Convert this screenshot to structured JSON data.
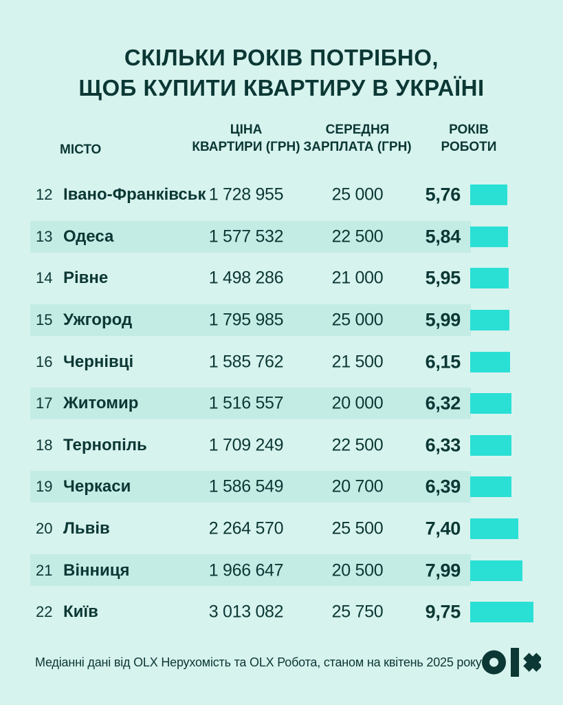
{
  "title": {
    "line1": "СКІЛЬКИ РОКІВ ПОТРІБНО,",
    "line2": "ЩОБ КУПИТИ КВАРТИРУ В УКРАЇНІ"
  },
  "columns": {
    "city": "МІСТО",
    "price_line1": "ЦІНА",
    "price_line2": "КВАРТИРИ (ГРН)",
    "salary_line1": "СЕРЕДНЯ",
    "salary_line2": "ЗАРПЛАТА (ГРН)",
    "years_line1": "РОКІВ",
    "years_line2": "РОБОТИ"
  },
  "table": {
    "rows": [
      {
        "rank": "12",
        "city": "Івано-Франківськ",
        "price": "1 728 955",
        "salary": "25 000",
        "years": "5,76",
        "years_num": 5.76
      },
      {
        "rank": "13",
        "city": "Одеса",
        "price": "1 577 532",
        "salary": "22 500",
        "years": "5,84",
        "years_num": 5.84
      },
      {
        "rank": "14",
        "city": "Рівне",
        "price": "1 498 286",
        "salary": "21 000",
        "years": "5,95",
        "years_num": 5.95
      },
      {
        "rank": "15",
        "city": "Ужгород",
        "price": "1 795 985",
        "salary": "25 000",
        "years": "5,99",
        "years_num": 5.99
      },
      {
        "rank": "16",
        "city": "Чернівці",
        "price": "1 585 762",
        "salary": "21 500",
        "years": "6,15",
        "years_num": 6.15
      },
      {
        "rank": "17",
        "city": "Житомир",
        "price": "1 516 557",
        "salary": "20 000",
        "years": "6,32",
        "years_num": 6.32
      },
      {
        "rank": "18",
        "city": "Тернопіль",
        "price": "1 709 249",
        "salary": "22 500",
        "years": "6,33",
        "years_num": 6.33
      },
      {
        "rank": "19",
        "city": "Черкаси",
        "price": "1 586 549",
        "salary": "20 700",
        "years": "6,39",
        "years_num": 6.39
      },
      {
        "rank": "20",
        "city": "Львів",
        "price": "2 264 570",
        "salary": "25 500",
        "years": "7,40",
        "years_num": 7.4
      },
      {
        "rank": "21",
        "city": "Вінниця",
        "price": "1 966 647",
        "salary": "20 500",
        "years": "7,99",
        "years_num": 7.99
      },
      {
        "rank": "22",
        "city": "Київ",
        "price": "3 013 082",
        "salary": "25 750",
        "years": "9,75",
        "years_num": 9.75
      }
    ]
  },
  "footer": {
    "source": "Медіанні дані від OLX Нерухомість та OLX Робота, станом на квітень 2025 року"
  },
  "logo": {
    "name": "olx"
  },
  "colors": {
    "background": "#d7f3ee",
    "row_band": "#c3ece5",
    "bar": "#2ae0d5",
    "ink": "#0b3734"
  },
  "chart_data": {
    "type": "bar",
    "title": "Скільки років потрібно, щоб купити квартиру в Україні",
    "categories": [
      "Івано-Франківськ",
      "Одеса",
      "Рівне",
      "Ужгород",
      "Чернівці",
      "Житомир",
      "Тернопіль",
      "Черкаси",
      "Львів",
      "Вінниця",
      "Київ"
    ],
    "ranks": [
      12,
      13,
      14,
      15,
      16,
      17,
      18,
      19,
      20,
      21,
      22
    ],
    "series": [
      {
        "name": "Ціна квартири (грн)",
        "values": [
          1728955,
          1577532,
          1498286,
          1795985,
          1585762,
          1516557,
          1709249,
          1586549,
          2264570,
          1966647,
          3013082
        ]
      },
      {
        "name": "Середня зарплата (грн)",
        "values": [
          25000,
          22500,
          21000,
          25000,
          21500,
          20000,
          22500,
          20700,
          25500,
          20500,
          25750
        ]
      },
      {
        "name": "Років роботи",
        "values": [
          5.76,
          5.84,
          5.95,
          5.99,
          6.15,
          6.32,
          6.33,
          6.39,
          7.4,
          7.99,
          9.75
        ]
      }
    ],
    "bar_series": "Років роботи",
    "orientation": "horizontal",
    "xlim": [
      0,
      10
    ],
    "legend": false,
    "grid": false,
    "note": "Медіанні дані від OLX Нерухомість та OLX Робота, станом на квітень 2025 року"
  }
}
